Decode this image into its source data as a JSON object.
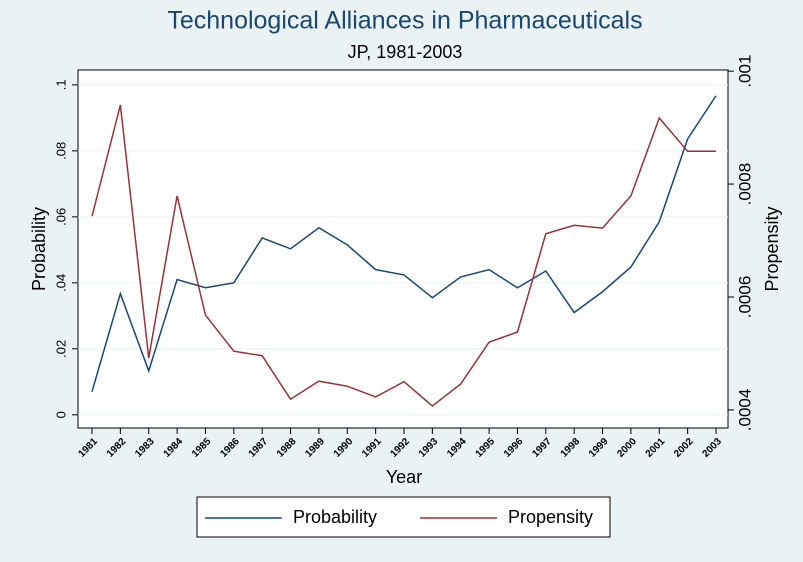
{
  "chart_data": {
    "type": "line",
    "title": "Technological Alliances in Pharmaceuticals",
    "subtitle": "JP, 1981-2003",
    "x_label": "Year",
    "y_label": "Probability",
    "y2_label": "Propensity",
    "categories": [
      "1981",
      "1982",
      "1983",
      "1984",
      "1985",
      "1986",
      "1987",
      "1988",
      "1989",
      "1990",
      "1991",
      "1992",
      "1993",
      "1994",
      "1995",
      "1996",
      "1997",
      "1998",
      "1999",
      "2000",
      "2001",
      "2002",
      "2003"
    ],
    "series": [
      {
        "name": "Probability",
        "color": "#1a476f",
        "axis": "y",
        "values": [
          0.007,
          0.0367,
          0.0133,
          0.041,
          0.0385,
          0.04,
          0.0536,
          0.0503,
          0.0567,
          0.0515,
          0.044,
          0.0424,
          0.0355,
          0.0418,
          0.044,
          0.0385,
          0.0436,
          0.031,
          0.0373,
          0.0448,
          0.0585,
          0.0836,
          0.0967
        ]
      },
      {
        "name": "Propensity",
        "color": "#90353b",
        "axis": "y2",
        "values": [
          0.000743,
          0.00094,
          0.000492,
          0.000779,
          0.000568,
          0.000504,
          0.000496,
          0.000419,
          0.000451,
          0.000442,
          0.000423,
          0.00045,
          0.000407,
          0.000446,
          0.00052,
          0.000538,
          0.000712,
          0.000727,
          0.000722,
          0.000779,
          0.000917,
          0.000858,
          0.000858
        ]
      }
    ],
    "ylim": [
      -0.004,
      0.1045
    ],
    "yticks": [
      0,
      {
        "value": 0.02,
        "label": ".02"
      },
      {
        "value": 0.04,
        "label": ".04"
      },
      {
        "value": 0.06,
        "label": ".06"
      },
      {
        "value": 0.08,
        "label": ".08"
      },
      {
        "value": 0.1,
        "label": ".1"
      }
    ],
    "y2lim": [
      0.000368,
      0.001002
    ],
    "y2ticks": [
      {
        "value": 0.0004,
        "label": ".0004"
      },
      {
        "value": 0.0006,
        "label": ".0006"
      },
      {
        "value": 0.0008,
        "label": ".0008"
      },
      {
        "value": 0.001,
        "label": ".001"
      }
    ],
    "grid": true,
    "legend": "bottom"
  }
}
